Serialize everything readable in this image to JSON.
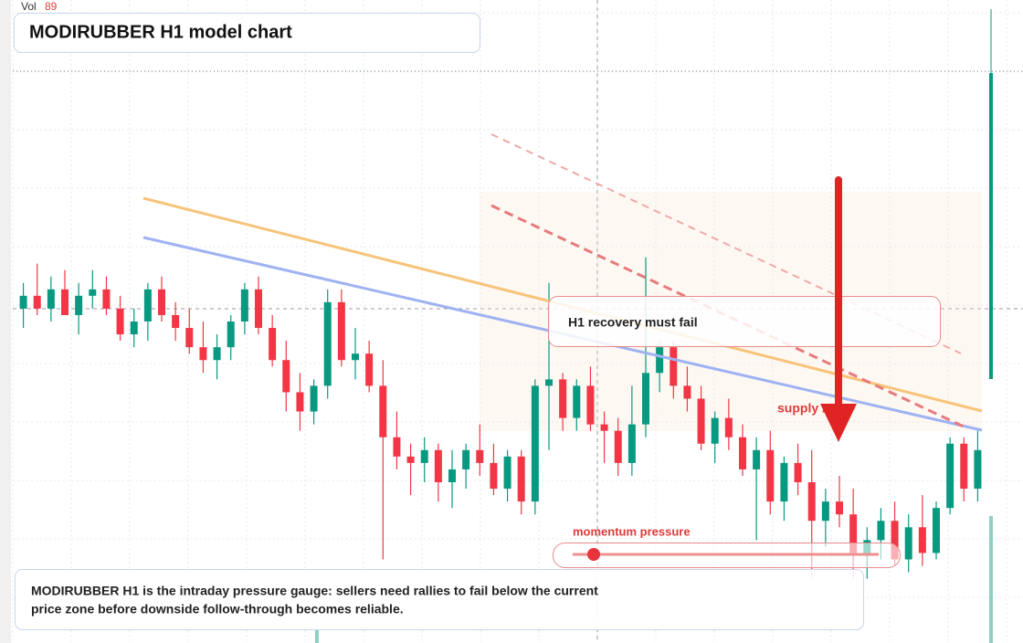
{
  "vol": {
    "label": "Vol",
    "value": "89"
  },
  "title": "MODIRUBBER H1 model chart",
  "annotations": {
    "callout": "H1 recovery must fail",
    "zone": "supply zone",
    "gauge": "momentum pressure"
  },
  "description": [
    "MODIRUBBER H1 is the intraday pressure gauge: sellers need rallies to fail below the current",
    "price zone before downside follow-through becomes reliable."
  ],
  "chart_data": {
    "type": "candlestick",
    "ylim": [
      0,
      100
    ],
    "up_color": "#089981",
    "down_color": "#f23645",
    "candles": [
      [
        52,
        56,
        49,
        54
      ],
      [
        54,
        59,
        51,
        52
      ],
      [
        52,
        57,
        50,
        55
      ],
      [
        55,
        58,
        52,
        51
      ],
      [
        51,
        56,
        48,
        54
      ],
      [
        54,
        58,
        52,
        55
      ],
      [
        55,
        57,
        51,
        52
      ],
      [
        52,
        54,
        47,
        48
      ],
      [
        48,
        52,
        46,
        50
      ],
      [
        50,
        56,
        47,
        55
      ],
      [
        55,
        57,
        50,
        51
      ],
      [
        51,
        53,
        47,
        49
      ],
      [
        49,
        52,
        45,
        46
      ],
      [
        46,
        50,
        42,
        44
      ],
      [
        44,
        48,
        41,
        46
      ],
      [
        46,
        51,
        44,
        50
      ],
      [
        50,
        56,
        48,
        55
      ],
      [
        55,
        57,
        48,
        49
      ],
      [
        49,
        51,
        43,
        44
      ],
      [
        44,
        47,
        36,
        39
      ],
      [
        39,
        42,
        33,
        36
      ],
      [
        36,
        41,
        34,
        40
      ],
      [
        40,
        55,
        38,
        53
      ],
      [
        53,
        55,
        43,
        44
      ],
      [
        44,
        49,
        41,
        45
      ],
      [
        45,
        47,
        39,
        40
      ],
      [
        40,
        44,
        13,
        32
      ],
      [
        32,
        36,
        27,
        29
      ],
      [
        29,
        31,
        23,
        28
      ],
      [
        28,
        32,
        25,
        30
      ],
      [
        30,
        31,
        22,
        25
      ],
      [
        25,
        30,
        21,
        27
      ],
      [
        27,
        31,
        24,
        30
      ],
      [
        30,
        34,
        26,
        28
      ],
      [
        28,
        31,
        23,
        24
      ],
      [
        24,
        30,
        22,
        29
      ],
      [
        29,
        30,
        20,
        22
      ],
      [
        22,
        41,
        20,
        40
      ],
      [
        40,
        56,
        30,
        41
      ],
      [
        41,
        42,
        33,
        35
      ],
      [
        35,
        41,
        33,
        40
      ],
      [
        40,
        43,
        33,
        34
      ],
      [
        34,
        36,
        28,
        33
      ],
      [
        33,
        35,
        26,
        28
      ],
      [
        28,
        40,
        26,
        34
      ],
      [
        34,
        60,
        32,
        42
      ],
      [
        42,
        47,
        39,
        46
      ],
      [
        46,
        47,
        38,
        40
      ],
      [
        40,
        43,
        36,
        38
      ],
      [
        38,
        40,
        30,
        31
      ],
      [
        31,
        36,
        28,
        35
      ],
      [
        35,
        38,
        30,
        32
      ],
      [
        32,
        34,
        26,
        27
      ],
      [
        27,
        32,
        16,
        30
      ],
      [
        30,
        33,
        20,
        22
      ],
      [
        22,
        29,
        19,
        28
      ],
      [
        28,
        31,
        23,
        25
      ],
      [
        25,
        30,
        10,
        19
      ],
      [
        19,
        24,
        15,
        22
      ],
      [
        22,
        26,
        18,
        20
      ],
      [
        20,
        24,
        10,
        14
      ],
      [
        14,
        18,
        10,
        16
      ],
      [
        16,
        21,
        13,
        19
      ],
      [
        19,
        22,
        12,
        13
      ],
      [
        13,
        20,
        11,
        18
      ],
      [
        18,
        23,
        12,
        14
      ],
      [
        14,
        22,
        13,
        21
      ],
      [
        21,
        32,
        20,
        31
      ],
      [
        31,
        32,
        22,
        24
      ],
      [
        24,
        33,
        22,
        30
      ]
    ]
  }
}
